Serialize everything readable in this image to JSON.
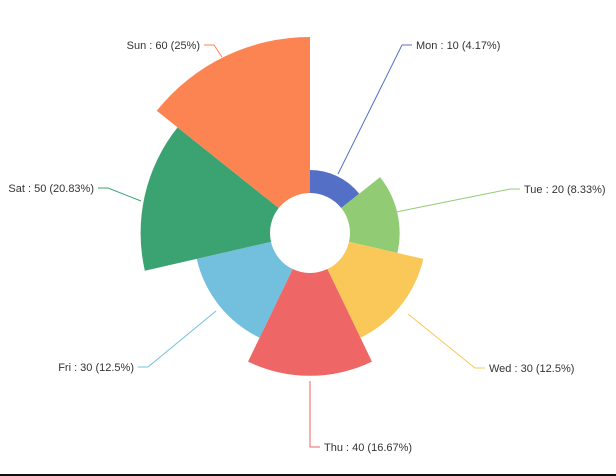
{
  "chart_data": {
    "type": "pie",
    "subtype": "nightingale-rose",
    "title": "",
    "categories": [
      "Mon",
      "Tue",
      "Wed",
      "Thu",
      "Fri",
      "Sat",
      "Sun"
    ],
    "values": [
      10,
      20,
      30,
      40,
      30,
      50,
      60
    ],
    "percentages": [
      "4.17%",
      "8.33%",
      "12.5%",
      "16.67%",
      "12.5%",
      "20.83%",
      "25%"
    ],
    "labels": [
      "Mon : 10 (4.17%)",
      "Tue : 20 (8.33%)",
      "Wed : 30 (12.5%)",
      "Thu : 40 (16.67%)",
      "Fri : 30 (12.5%)",
      "Sat : 50 (20.83%)",
      "Sun : 60 (25%)"
    ],
    "colors": [
      "#5470c6",
      "#91cc75",
      "#fac858",
      "#ee6666",
      "#73c0de",
      "#3ba272",
      "#fc8452"
    ],
    "center": [
      310,
      233
    ],
    "inner_radius": 40,
    "legend": "none"
  },
  "labels": {
    "mon": "Mon : 10 (4.17%)",
    "tue": "Tue : 20 (8.33%)",
    "wed": "Wed : 30 (12.5%)",
    "thu": "Thu : 40 (16.67%)",
    "fri": "Fri : 30 (12.5%)",
    "sat": "Sat : 50 (20.83%)",
    "sun": "Sun : 60 (25%)"
  }
}
